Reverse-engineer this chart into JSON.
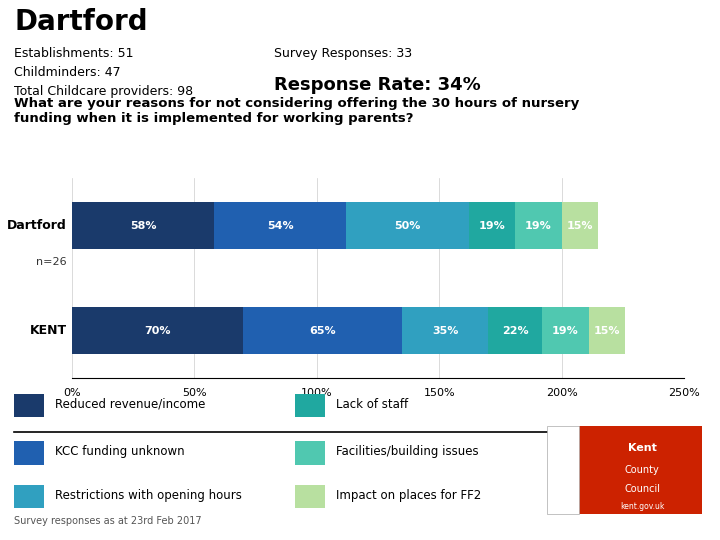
{
  "title": "Dartford",
  "establishments": "51",
  "childminders": "47",
  "total_providers": "98",
  "survey_responses": "33",
  "response_rate": "34%",
  "question": "What are your reasons for not considering offering the 30 hours of nursery\nfunding when it is implemented for working parents?",
  "dartford_n": "n=26",
  "rows": [
    "Dartford",
    "KENT"
  ],
  "values": [
    [
      58,
      54,
      50,
      19,
      19,
      15
    ],
    [
      70,
      65,
      35,
      22,
      19,
      15
    ]
  ],
  "colors": [
    "#1a3a6b",
    "#2060b0",
    "#30a0c0",
    "#20a8a0",
    "#50c8b0",
    "#b8e0a0"
  ],
  "legend_labels": [
    "Reduced revenue/income",
    "KCC funding unknown",
    "Restrictions with opening hours",
    "Lack of staff",
    "Facilities/building issues",
    "Impact on places for FF2"
  ],
  "xlim": [
    0,
    250
  ],
  "xticks": [
    0,
    50,
    100,
    150,
    200,
    250
  ],
  "xtick_labels": [
    "0%",
    "50%",
    "100%",
    "150%",
    "200%",
    "250%"
  ],
  "bar_height": 0.45,
  "bg_color": "#ffffff",
  "footer": "Survey responses as at 23rd Feb 2017"
}
